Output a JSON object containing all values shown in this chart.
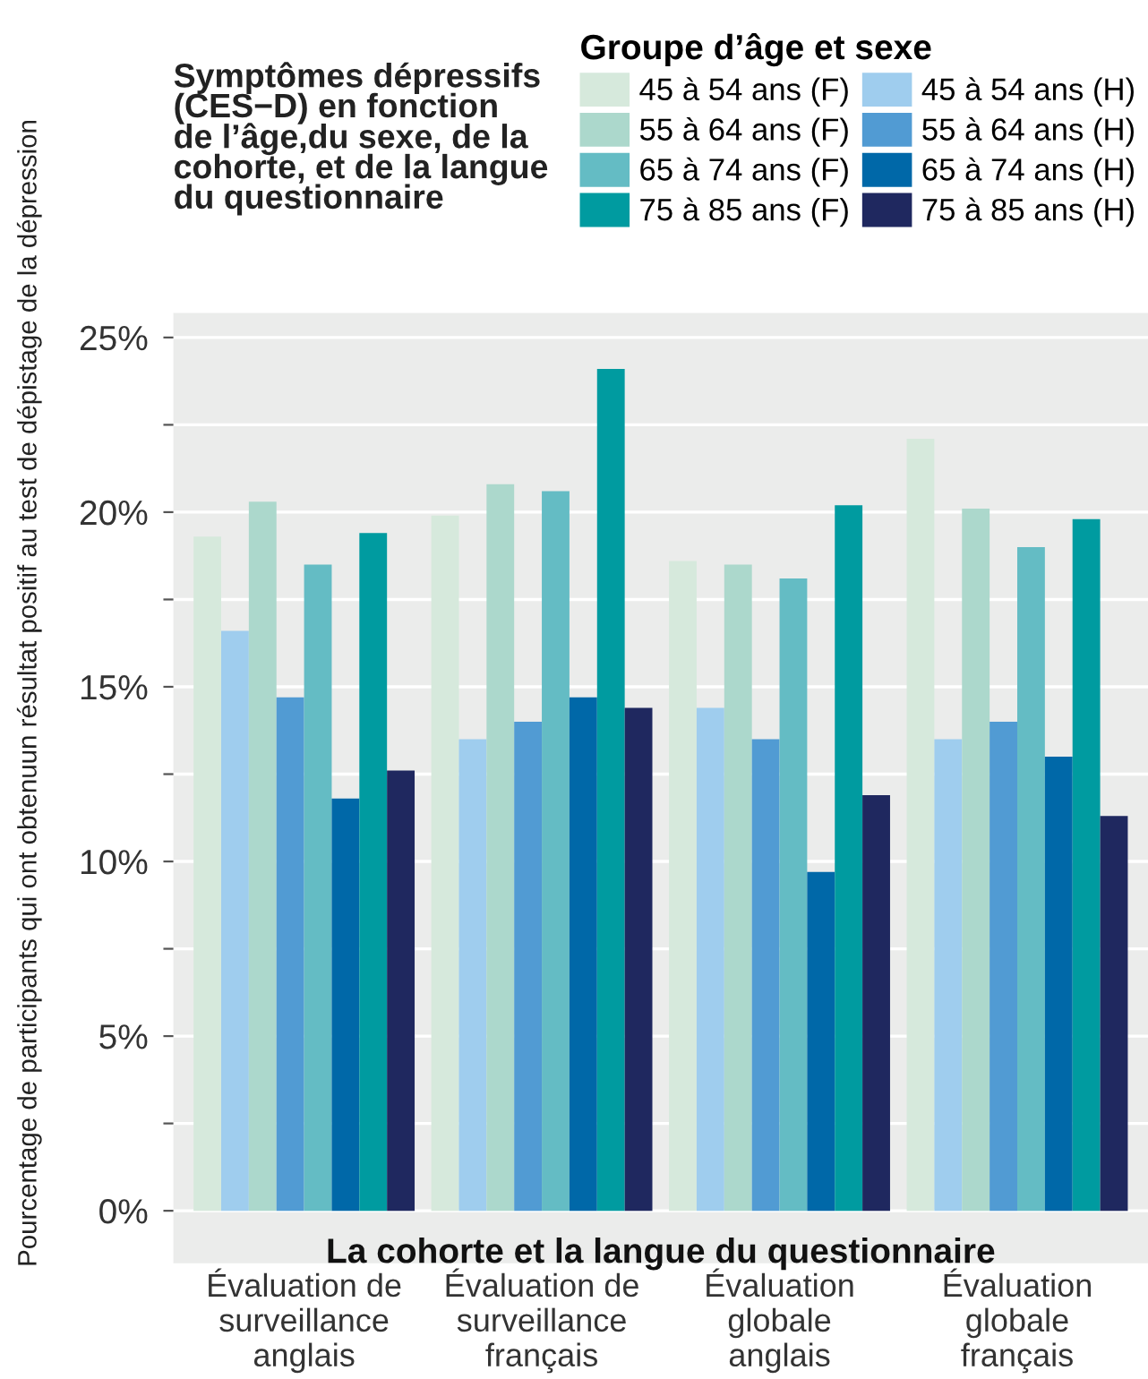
{
  "chart_data": {
    "type": "bar",
    "title": "Symptômes dépressifs\n(CES−D) en fonction\nde l’âge,du sexe, de la\ncohorte, et de la langue\ndu questionnaire",
    "xlabel": "La cohorte et la langue du questionnaire",
    "ylabel": "Pourcentage de participants qui ont obtenuun résultat positif au test de dépistage de la dépression",
    "legend_title": "Groupe d’âge et sexe",
    "legend": "top right",
    "categories": [
      "Évaluation de\nsurveillance\nanglais",
      "Évaluation de\nsurveillance\nfrançais",
      "Évaluation\nglobale\nanglais",
      "Évaluation\nglobale\nfrançais"
    ],
    "series": [
      {
        "name": "45 à 54 ans (F)",
        "color": "#d6e9dc",
        "values": [
          19.3,
          19.9,
          18.6,
          22.1
        ]
      },
      {
        "name": "45 à 54 ans (H)",
        "color": "#9fcdee",
        "values": [
          16.6,
          13.5,
          14.4,
          13.5
        ]
      },
      {
        "name": "55 à 64 ans (F)",
        "color": "#acd8cc",
        "values": [
          20.3,
          20.8,
          18.5,
          20.1
        ]
      },
      {
        "name": "55 à 64 ans (H)",
        "color": "#519bd3",
        "values": [
          14.7,
          14.0,
          13.5,
          14.0
        ]
      },
      {
        "name": "65 à 74 ans (F)",
        "color": "#64bcc4",
        "values": [
          18.5,
          20.6,
          18.1,
          19.0
        ]
      },
      {
        "name": "65 à 74 ans (H)",
        "color": "#0068a8",
        "values": [
          11.8,
          14.7,
          9.7,
          13.0
        ]
      },
      {
        "name": "75 à 85 ans (F)",
        "color": "#009ba0",
        "values": [
          19.4,
          24.1,
          20.2,
          19.8
        ]
      },
      {
        "name": "75 à 85 ans (H)",
        "color": "#1f285f",
        "values": [
          12.6,
          14.4,
          11.9,
          11.3
        ]
      }
    ],
    "ylim": [
      -1.5,
      25.7
    ],
    "yticks": [
      {
        "value": 0,
        "label": "0%"
      },
      {
        "value": 2.5,
        "label": null
      },
      {
        "value": 5,
        "label": "5%"
      },
      {
        "value": 7.5,
        "label": null
      },
      {
        "value": 10,
        "label": "10%"
      },
      {
        "value": 12.5,
        "label": null
      },
      {
        "value": 15,
        "label": "15%"
      },
      {
        "value": 17.5,
        "label": null
      },
      {
        "value": 20,
        "label": "20%"
      },
      {
        "value": 22.5,
        "label": null
      },
      {
        "value": 25,
        "label": "25%"
      }
    ],
    "grid": "y"
  }
}
